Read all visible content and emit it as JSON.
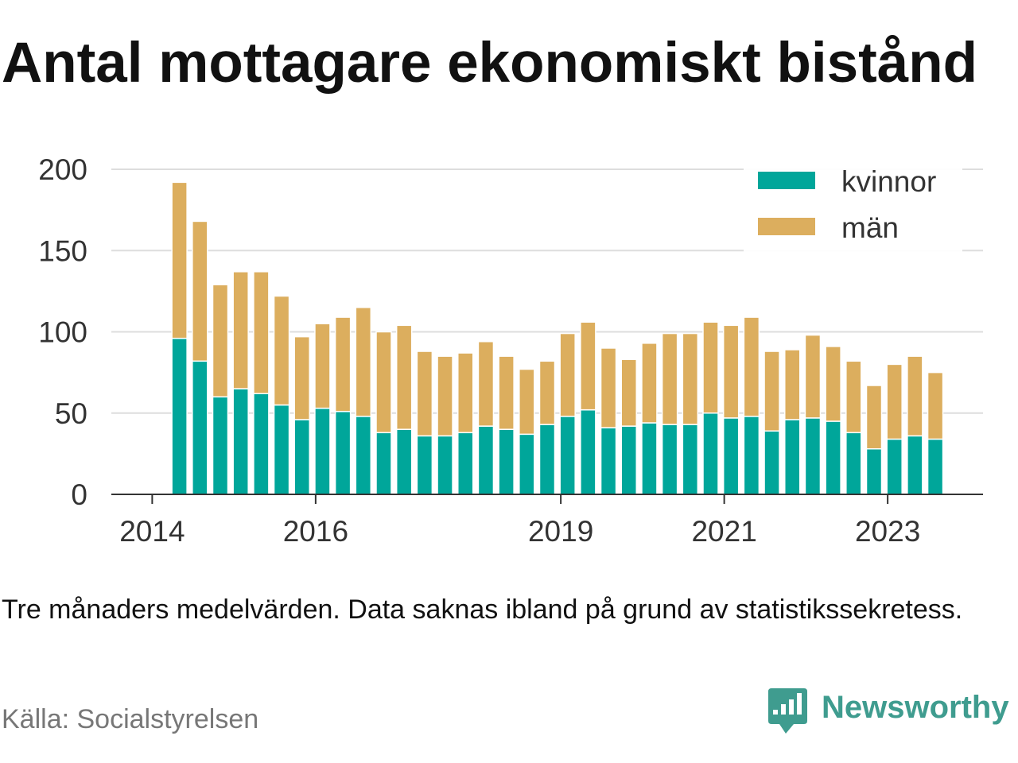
{
  "chart_data": {
    "type": "bar",
    "stacked": true,
    "title": "Antal mottagare ekonomiskt bistånd",
    "x": [
      "2014-05",
      "2014-08",
      "2014-11",
      "2015-02",
      "2015-05",
      "2015-08",
      "2015-11",
      "2016-02",
      "2016-05",
      "2016-08",
      "2016-11",
      "2017-02",
      "2017-05",
      "2017-08",
      "2017-11",
      "2018-02",
      "2018-05",
      "2018-08",
      "2018-11",
      "2019-02",
      "2019-05",
      "2019-08",
      "2019-11",
      "2020-02",
      "2020-05",
      "2020-08",
      "2020-11",
      "2021-02",
      "2021-05",
      "2021-08",
      "2021-11",
      "2022-02",
      "2022-05",
      "2022-08",
      "2022-11",
      "2023-02",
      "2023-05",
      "2023-08"
    ],
    "series": [
      {
        "name": "kvinnor",
        "color": "#00A69A",
        "values": [
          96,
          82,
          60,
          65,
          62,
          55,
          46,
          53,
          51,
          48,
          38,
          40,
          36,
          36,
          38,
          42,
          40,
          37,
          43,
          48,
          52,
          41,
          42,
          44,
          43,
          43,
          50,
          47,
          48,
          39,
          46,
          47,
          45,
          38,
          28,
          34,
          36,
          34
        ]
      },
      {
        "name": "män",
        "color": "#DCAE5E",
        "values": [
          96,
          86,
          69,
          72,
          75,
          67,
          51,
          52,
          58,
          67,
          62,
          64,
          52,
          49,
          49,
          52,
          45,
          40,
          39,
          51,
          54,
          49,
          41,
          49,
          56,
          56,
          56,
          57,
          61,
          49,
          43,
          51,
          46,
          44,
          39,
          46,
          49,
          41
        ]
      }
    ],
    "xlim": [
      "2013-07",
      "2024-03"
    ],
    "x_ticks": [
      "2014",
      "2016",
      "2019",
      "2021",
      "2023"
    ],
    "ylim": [
      0,
      200
    ],
    "y_ticks": [
      0,
      50,
      100,
      150,
      200
    ],
    "grid": "horizontal",
    "legend": "top-right"
  },
  "caption": "Tre månaders medelvärden. Data saknas ibland på grund av statistikssekretess.",
  "source": "Källa: Socialstyrelsen",
  "logo": {
    "text": "Newsworthy",
    "icon": "newsworthy-speech-bubble-bar-chart-icon",
    "color": "#3F9C8F"
  }
}
